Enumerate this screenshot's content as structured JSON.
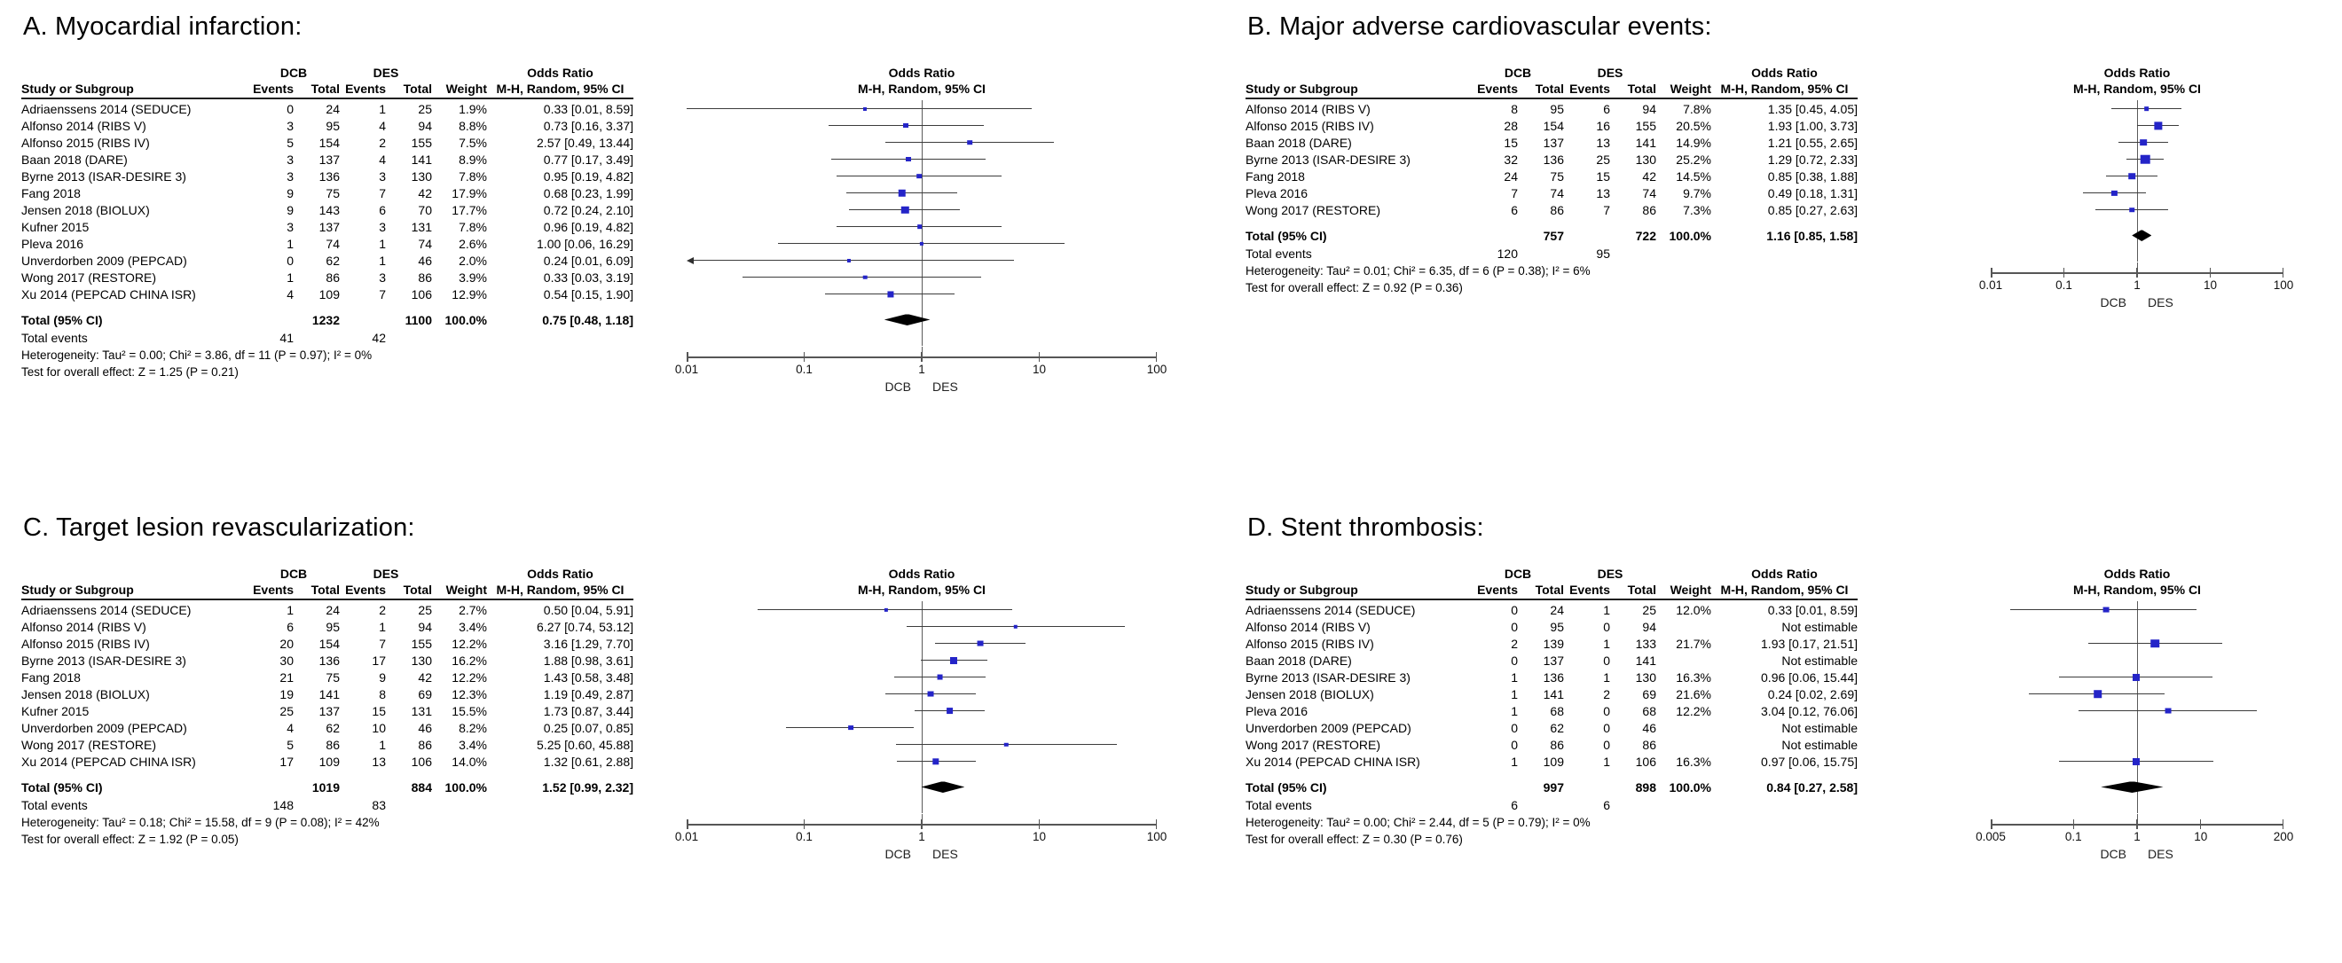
{
  "style": {
    "marker_color": "#2424c8",
    "ci_line_color": "#3c3c3c",
    "diamond_color": "#000000",
    "axis_color": "#565656",
    "text_color": "#000000"
  },
  "chart_data": {
    "type": "scatter",
    "subtype": "forest-plot-meta-analysis",
    "legend_position": "none",
    "grid": false,
    "table_headers": {
      "study": "Study or Subgroup",
      "dcb": "DCB",
      "des": "DES",
      "events": "Events",
      "total": "Total",
      "weight": "Weight",
      "or_group": "Odds Ratio",
      "or_method": "M-H, Random, 95% CI",
      "plot_group": "Odds Ratio",
      "plot_method": "M-H, Random, 95% CI"
    },
    "footer_labels": {
      "total": "Total (95% CI)",
      "total_events": "Total events"
    },
    "axis_group_labels": {
      "left": "DCB",
      "right": "DES"
    },
    "panels": [
      {
        "id": "A",
        "title": "A. Myocardial infarction:",
        "axis": {
          "min": 0.01,
          "max": 100,
          "ticks": [
            0.01,
            0.1,
            1,
            10,
            100
          ],
          "tick_labels": [
            "0.01",
            "0.1",
            "1",
            "10",
            "100"
          ]
        },
        "studies": [
          {
            "name": "Adriaenssens 2014 (SEDUCE)",
            "dcb_events": "0",
            "dcb_total": "24",
            "des_events": "1",
            "des_total": "25",
            "weight": "1.9%",
            "w": 1.9,
            "or_text": "0.33 [0.01, 8.59]",
            "or": 0.33,
            "lo": 0.01,
            "hi": 8.59
          },
          {
            "name": "Alfonso 2014 (RIBS V)",
            "dcb_events": "3",
            "dcb_total": "95",
            "des_events": "4",
            "des_total": "94",
            "weight": "8.8%",
            "w": 8.8,
            "or_text": "0.73 [0.16, 3.37]",
            "or": 0.73,
            "lo": 0.16,
            "hi": 3.37
          },
          {
            "name": "Alfonso 2015 (RIBS IV)",
            "dcb_events": "5",
            "dcb_total": "154",
            "des_events": "2",
            "des_total": "155",
            "weight": "7.5%",
            "w": 7.5,
            "or_text": "2.57 [0.49, 13.44]",
            "or": 2.57,
            "lo": 0.49,
            "hi": 13.44
          },
          {
            "name": "Baan 2018 (DARE)",
            "dcb_events": "3",
            "dcb_total": "137",
            "des_events": "4",
            "des_total": "141",
            "weight": "8.9%",
            "w": 8.9,
            "or_text": "0.77 [0.17, 3.49]",
            "or": 0.77,
            "lo": 0.17,
            "hi": 3.49
          },
          {
            "name": "Byrne 2013 (ISAR-DESIRE 3)",
            "dcb_events": "3",
            "dcb_total": "136",
            "des_events": "3",
            "des_total": "130",
            "weight": "7.8%",
            "w": 7.8,
            "or_text": "0.95 [0.19, 4.82]",
            "or": 0.95,
            "lo": 0.19,
            "hi": 4.82
          },
          {
            "name": "Fang 2018",
            "dcb_events": "9",
            "dcb_total": "75",
            "des_events": "7",
            "des_total": "42",
            "weight": "17.9%",
            "w": 17.9,
            "or_text": "0.68 [0.23, 1.99]",
            "or": 0.68,
            "lo": 0.23,
            "hi": 1.99
          },
          {
            "name": "Jensen 2018 (BIOLUX)",
            "dcb_events": "9",
            "dcb_total": "143",
            "des_events": "6",
            "des_total": "70",
            "weight": "17.7%",
            "w": 17.7,
            "or_text": "0.72 [0.24, 2.10]",
            "or": 0.72,
            "lo": 0.24,
            "hi": 2.1
          },
          {
            "name": "Kufner 2015",
            "dcb_events": "3",
            "dcb_total": "137",
            "des_events": "3",
            "des_total": "131",
            "weight": "7.8%",
            "w": 7.8,
            "or_text": "0.96 [0.19, 4.82]",
            "or": 0.96,
            "lo": 0.19,
            "hi": 4.82
          },
          {
            "name": "Pleva 2016",
            "dcb_events": "1",
            "dcb_total": "74",
            "des_events": "1",
            "des_total": "74",
            "weight": "2.6%",
            "w": 2.6,
            "or_text": "1.00 [0.06, 16.29]",
            "or": 1.0,
            "lo": 0.06,
            "hi": 16.29
          },
          {
            "name": "Unverdorben 2009 (PEPCAD)",
            "dcb_events": "0",
            "dcb_total": "62",
            "des_events": "1",
            "des_total": "46",
            "weight": "2.0%",
            "w": 2.0,
            "or_text": "0.24 [0.01, 6.09]",
            "or": 0.24,
            "lo": 0.01,
            "hi": 6.09,
            "arrow_lo": true
          },
          {
            "name": "Wong 2017 (RESTORE)",
            "dcb_events": "1",
            "dcb_total": "86",
            "des_events": "3",
            "des_total": "86",
            "weight": "3.9%",
            "w": 3.9,
            "or_text": "0.33 [0.03, 3.19]",
            "or": 0.33,
            "lo": 0.03,
            "hi": 3.19
          },
          {
            "name": "Xu 2014 (PEPCAD CHINA ISR)",
            "dcb_events": "4",
            "dcb_total": "109",
            "des_events": "7",
            "des_total": "106",
            "weight": "12.9%",
            "w": 12.9,
            "or_text": "0.54 [0.15, 1.90]",
            "or": 0.54,
            "lo": 0.15,
            "hi": 1.9
          }
        ],
        "total": {
          "dcb_total": "1232",
          "des_total": "1100",
          "weight": "100.0%",
          "or_text": "0.75 [0.48, 1.18]",
          "or": 0.75,
          "lo": 0.48,
          "hi": 1.18,
          "dcb_events": "41",
          "des_events": "42"
        },
        "heterogeneity": "Heterogeneity: Tau² = 0.00; Chi² = 3.86, df = 11 (P = 0.97); I² = 0%",
        "overall": "Test for overall effect: Z = 1.25 (P = 0.21)"
      },
      {
        "id": "B",
        "title": "B. Major adverse cardiovascular events:",
        "axis": {
          "min": 0.01,
          "max": 100,
          "ticks": [
            0.01,
            0.1,
            1,
            10,
            100
          ],
          "tick_labels": [
            "0.01",
            "0.1",
            "1",
            "10",
            "100"
          ]
        },
        "studies": [
          {
            "name": "Alfonso 2014 (RIBS V)",
            "dcb_events": "8",
            "dcb_total": "95",
            "des_events": "6",
            "des_total": "94",
            "weight": "7.8%",
            "w": 7.8,
            "or_text": "1.35 [0.45, 4.05]",
            "or": 1.35,
            "lo": 0.45,
            "hi": 4.05
          },
          {
            "name": "Alfonso 2015 (RIBS IV)",
            "dcb_events": "28",
            "dcb_total": "154",
            "des_events": "16",
            "des_total": "155",
            "weight": "20.5%",
            "w": 20.5,
            "or_text": "1.93 [1.00, 3.73]",
            "or": 1.93,
            "lo": 1.0,
            "hi": 3.73
          },
          {
            "name": "Baan 2018 (DARE)",
            "dcb_events": "15",
            "dcb_total": "137",
            "des_events": "13",
            "des_total": "141",
            "weight": "14.9%",
            "w": 14.9,
            "or_text": "1.21 [0.55, 2.65]",
            "or": 1.21,
            "lo": 0.55,
            "hi": 2.65
          },
          {
            "name": "Byrne 2013 (ISAR-DESIRE 3)",
            "dcb_events": "32",
            "dcb_total": "136",
            "des_events": "25",
            "des_total": "130",
            "weight": "25.2%",
            "w": 25.2,
            "or_text": "1.29 [0.72, 2.33]",
            "or": 1.29,
            "lo": 0.72,
            "hi": 2.33
          },
          {
            "name": "Fang 2018",
            "dcb_events": "24",
            "dcb_total": "75",
            "des_events": "15",
            "des_total": "42",
            "weight": "14.5%",
            "w": 14.5,
            "or_text": "0.85 [0.38, 1.88]",
            "or": 0.85,
            "lo": 0.38,
            "hi": 1.88
          },
          {
            "name": "Pleva 2016",
            "dcb_events": "7",
            "dcb_total": "74",
            "des_events": "13",
            "des_total": "74",
            "weight": "9.7%",
            "w": 9.7,
            "or_text": "0.49 [0.18, 1.31]",
            "or": 0.49,
            "lo": 0.18,
            "hi": 1.31
          },
          {
            "name": "Wong 2017 (RESTORE)",
            "dcb_events": "6",
            "dcb_total": "86",
            "des_events": "7",
            "des_total": "86",
            "weight": "7.3%",
            "w": 7.3,
            "or_text": "0.85 [0.27, 2.63]",
            "or": 0.85,
            "lo": 0.27,
            "hi": 2.63
          }
        ],
        "total": {
          "dcb_total": "757",
          "des_total": "722",
          "weight": "100.0%",
          "or_text": "1.16 [0.85, 1.58]",
          "or": 1.16,
          "lo": 0.85,
          "hi": 1.58,
          "dcb_events": "120",
          "des_events": "95"
        },
        "heterogeneity": "Heterogeneity: Tau² = 0.01; Chi² = 6.35, df = 6 (P = 0.38); I² = 6%",
        "overall": "Test for overall effect: Z = 0.92 (P = 0.36)"
      },
      {
        "id": "C",
        "title": "C. Target lesion revascularization:",
        "axis": {
          "min": 0.01,
          "max": 100,
          "ticks": [
            0.01,
            0.1,
            1,
            10,
            100
          ],
          "tick_labels": [
            "0.01",
            "0.1",
            "1",
            "10",
            "100"
          ]
        },
        "studies": [
          {
            "name": "Adriaenssens 2014 (SEDUCE)",
            "dcb_events": "1",
            "dcb_total": "24",
            "des_events": "2",
            "des_total": "25",
            "weight": "2.7%",
            "w": 2.7,
            "or_text": "0.50 [0.04, 5.91]",
            "or": 0.5,
            "lo": 0.04,
            "hi": 5.91
          },
          {
            "name": "Alfonso 2014 (RIBS V)",
            "dcb_events": "6",
            "dcb_total": "95",
            "des_events": "1",
            "des_total": "94",
            "weight": "3.4%",
            "w": 3.4,
            "or_text": "6.27 [0.74, 53.12]",
            "or": 6.27,
            "lo": 0.74,
            "hi": 53.12
          },
          {
            "name": "Alfonso 2015 (RIBS IV)",
            "dcb_events": "20",
            "dcb_total": "154",
            "des_events": "7",
            "des_total": "155",
            "weight": "12.2%",
            "w": 12.2,
            "or_text": "3.16 [1.29, 7.70]",
            "or": 3.16,
            "lo": 1.29,
            "hi": 7.7
          },
          {
            "name": "Byrne 2013 (ISAR-DESIRE 3)",
            "dcb_events": "30",
            "dcb_total": "136",
            "des_events": "17",
            "des_total": "130",
            "weight": "16.2%",
            "w": 16.2,
            "or_text": "1.88 [0.98, 3.61]",
            "or": 1.88,
            "lo": 0.98,
            "hi": 3.61
          },
          {
            "name": "Fang 2018",
            "dcb_events": "21",
            "dcb_total": "75",
            "des_events": "9",
            "des_total": "42",
            "weight": "12.2%",
            "w": 12.2,
            "or_text": "1.43 [0.58, 3.48]",
            "or": 1.43,
            "lo": 0.58,
            "hi": 3.48
          },
          {
            "name": "Jensen 2018 (BIOLUX)",
            "dcb_events": "19",
            "dcb_total": "141",
            "des_events": "8",
            "des_total": "69",
            "weight": "12.3%",
            "w": 12.3,
            "or_text": "1.19 [0.49, 2.87]",
            "or": 1.19,
            "lo": 0.49,
            "hi": 2.87
          },
          {
            "name": "Kufner 2015",
            "dcb_events": "25",
            "dcb_total": "137",
            "des_events": "15",
            "des_total": "131",
            "weight": "15.5%",
            "w": 15.5,
            "or_text": "1.73 [0.87, 3.44]",
            "or": 1.73,
            "lo": 0.87,
            "hi": 3.44
          },
          {
            "name": "Unverdorben 2009 (PEPCAD)",
            "dcb_events": "4",
            "dcb_total": "62",
            "des_events": "10",
            "des_total": "46",
            "weight": "8.2%",
            "w": 8.2,
            "or_text": "0.25 [0.07, 0.85]",
            "or": 0.25,
            "lo": 0.07,
            "hi": 0.85
          },
          {
            "name": "Wong 2017 (RESTORE)",
            "dcb_events": "5",
            "dcb_total": "86",
            "des_events": "1",
            "des_total": "86",
            "weight": "3.4%",
            "w": 3.4,
            "or_text": "5.25 [0.60, 45.88]",
            "or": 5.25,
            "lo": 0.6,
            "hi": 45.88
          },
          {
            "name": "Xu 2014 (PEPCAD CHINA ISR)",
            "dcb_events": "17",
            "dcb_total": "109",
            "des_events": "13",
            "des_total": "106",
            "weight": "14.0%",
            "w": 14.0,
            "or_text": "1.32 [0.61, 2.88]",
            "or": 1.32,
            "lo": 0.61,
            "hi": 2.88
          }
        ],
        "total": {
          "dcb_total": "1019",
          "des_total": "884",
          "weight": "100.0%",
          "or_text": "1.52 [0.99, 2.32]",
          "or": 1.52,
          "lo": 0.99,
          "hi": 2.32,
          "dcb_events": "148",
          "des_events": "83"
        },
        "heterogeneity": "Heterogeneity: Tau² = 0.18; Chi² = 15.58, df = 9 (P = 0.08); I² = 42%",
        "overall": "Test for overall effect: Z = 1.92 (P = 0.05)"
      },
      {
        "id": "D",
        "title": "D. Stent thrombosis:",
        "axis": {
          "min": 0.005,
          "max": 200,
          "ticks": [
            0.005,
            0.1,
            1,
            10,
            200
          ],
          "tick_labels": [
            "0.005",
            "0.1",
            "1",
            "10",
            "200"
          ]
        },
        "studies": [
          {
            "name": "Adriaenssens 2014 (SEDUCE)",
            "dcb_events": "0",
            "dcb_total": "24",
            "des_events": "1",
            "des_total": "25",
            "weight": "12.0%",
            "w": 12.0,
            "or_text": "0.33 [0.01, 8.59]",
            "or": 0.33,
            "lo": 0.01,
            "hi": 8.59
          },
          {
            "name": "Alfonso 2014 (RIBS V)",
            "dcb_events": "0",
            "dcb_total": "95",
            "des_events": "0",
            "des_total": "94",
            "weight": "",
            "or_text": "Not estimable",
            "not_estimable": true
          },
          {
            "name": "Alfonso 2015 (RIBS IV)",
            "dcb_events": "2",
            "dcb_total": "139",
            "des_events": "1",
            "des_total": "133",
            "weight": "21.7%",
            "w": 21.7,
            "or_text": "1.93 [0.17, 21.51]",
            "or": 1.93,
            "lo": 0.17,
            "hi": 21.51
          },
          {
            "name": "Baan 2018 (DARE)",
            "dcb_events": "0",
            "dcb_total": "137",
            "des_events": "0",
            "des_total": "141",
            "weight": "",
            "or_text": "Not estimable",
            "not_estimable": true
          },
          {
            "name": "Byrne 2013 (ISAR-DESIRE 3)",
            "dcb_events": "1",
            "dcb_total": "136",
            "des_events": "1",
            "des_total": "130",
            "weight": "16.3%",
            "w": 16.3,
            "or_text": "0.96 [0.06, 15.44]",
            "or": 0.96,
            "lo": 0.06,
            "hi": 15.44
          },
          {
            "name": "Jensen 2018 (BIOLUX)",
            "dcb_events": "1",
            "dcb_total": "141",
            "des_events": "2",
            "des_total": "69",
            "weight": "21.6%",
            "w": 21.6,
            "or_text": "0.24 [0.02, 2.69]",
            "or": 0.24,
            "lo": 0.02,
            "hi": 2.69
          },
          {
            "name": "Pleva 2016",
            "dcb_events": "1",
            "dcb_total": "68",
            "des_events": "0",
            "des_total": "68",
            "weight": "12.2%",
            "w": 12.2,
            "or_text": "3.04 [0.12, 76.06]",
            "or": 3.04,
            "lo": 0.12,
            "hi": 76.06
          },
          {
            "name": "Unverdorben 2009 (PEPCAD)",
            "dcb_events": "0",
            "dcb_total": "62",
            "des_events": "0",
            "des_total": "46",
            "weight": "",
            "or_text": "Not estimable",
            "not_estimable": true
          },
          {
            "name": "Wong 2017 (RESTORE)",
            "dcb_events": "0",
            "dcb_total": "86",
            "des_events": "0",
            "des_total": "86",
            "weight": "",
            "or_text": "Not estimable",
            "not_estimable": true
          },
          {
            "name": "Xu 2014 (PEPCAD CHINA ISR)",
            "dcb_events": "1",
            "dcb_total": "109",
            "des_events": "1",
            "des_total": "106",
            "weight": "16.3%",
            "w": 16.3,
            "or_text": "0.97 [0.06, 15.75]",
            "or": 0.97,
            "lo": 0.06,
            "hi": 15.75
          }
        ],
        "total": {
          "dcb_total": "997",
          "des_total": "898",
          "weight": "100.0%",
          "or_text": "0.84 [0.27, 2.58]",
          "or": 0.84,
          "lo": 0.27,
          "hi": 2.58,
          "dcb_events": "6",
          "des_events": "6"
        },
        "heterogeneity": "Heterogeneity: Tau² = 0.00; Chi² = 2.44, df = 5 (P = 0.79); I² = 0%",
        "overall": "Test for overall effect: Z = 0.30 (P = 0.76)"
      }
    ]
  }
}
